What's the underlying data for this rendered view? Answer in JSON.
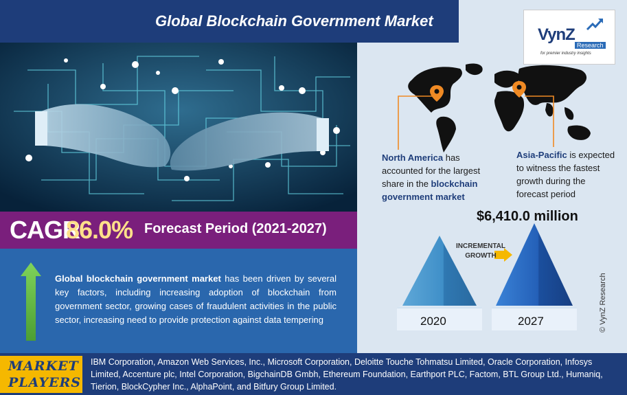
{
  "header": {
    "title": "Global Blockchain Government Market"
  },
  "logo": {
    "name": "VynZ",
    "research": "Research",
    "tagline": "for premier industry insights"
  },
  "cagr": {
    "label": "CAGR",
    "value": "86.0%",
    "forecast": "Forecast Period (2021-2027)"
  },
  "description": {
    "lead": "Global blockchain government market",
    "body": " has been driven by several key factors, including increasing adoption of blockchain from government sector, growing cases of fraudulent activities in the public sector, increasing need to provide protection against data tempering"
  },
  "regions": {
    "north_america": {
      "name": "North America",
      "text1": " has accounted for the largest share in the ",
      "market": "blockchain government market"
    },
    "asia_pacific": {
      "name": "Asia-Pacific",
      "text": " is expected to witness the fastest growth during the forecast period"
    }
  },
  "growth": {
    "value_2027": "$6,410.0 million",
    "label_line1": "INCREMENTAL",
    "label_line2": "GROWTH",
    "year_start": "2020",
    "year_end": "2027"
  },
  "copyright": "© VynZ Research",
  "market_players": {
    "label_line1": "MARKET",
    "label_line2": "PLAYERS",
    "list": "IBM Corporation, Amazon Web Services, Inc., Microsoft Corporation, Deloitte Touche Tohmatsu Limited, Oracle Corporation, Infosys Limited, Accenture plc, Intel Corporation, BigchainDB Gmbh, Ethereum Foundation, Earthport PLC, Factom, BTL Group Ltd., Humaniq, Tierion, BlockCypher Inc., AlphaPoint, and Bitfury Group Limited."
  },
  "colors": {
    "header_bg": "#1e3d7a",
    "cagr_bg": "#7a1f7c",
    "cagr_value": "#ffe08a",
    "desc_bg": "#2a67ad",
    "arrow_green": "#6cc04a",
    "pin_orange": "#f08a24",
    "players_badge": "#f5b800"
  }
}
